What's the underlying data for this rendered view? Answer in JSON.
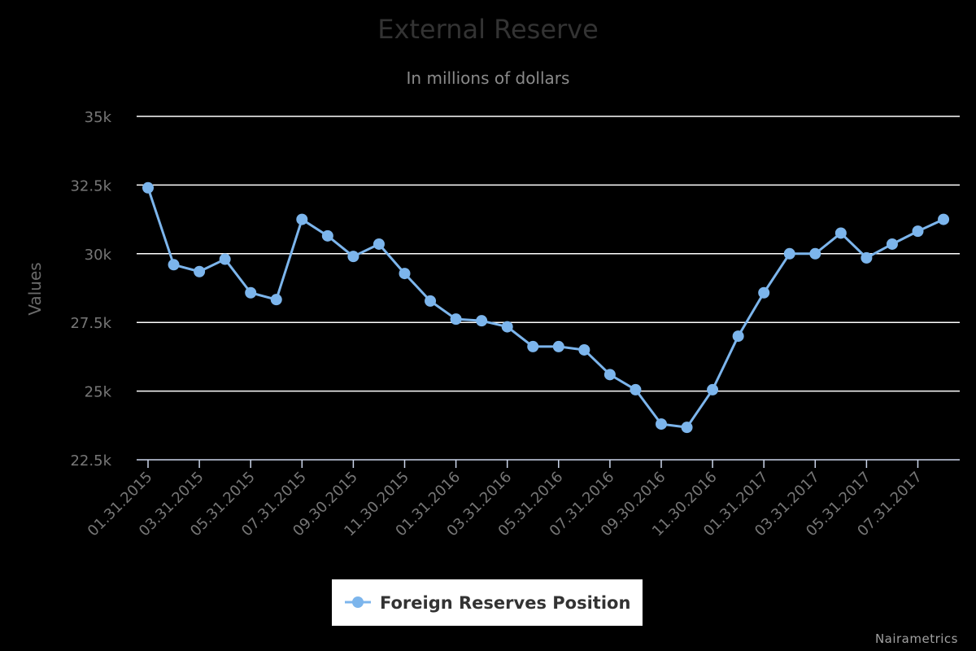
{
  "chart_data": {
    "type": "line",
    "title": "External Reserve",
    "subtitle": "In millions of dollars",
    "ylabel": "Values",
    "xlabel": "",
    "ylim": [
      22500,
      35000
    ],
    "y_ticks": [
      22500,
      25000,
      27500,
      30000,
      32500,
      35000
    ],
    "y_tick_labels": [
      "22.5k",
      "25k",
      "27.5k",
      "30k",
      "32.5k",
      "35k"
    ],
    "x_tick_labels": [
      "01.31.2015",
      "03.31.2015",
      "05.31.2015",
      "07.31.2015",
      "09.30.2015",
      "11.30.2015",
      "01.31.2016",
      "03.31.2016",
      "05.31.2016",
      "07.31.2016",
      "09.30.2016",
      "11.30.2016",
      "01.31.2017",
      "03.31.2017",
      "05.31.2017",
      "07.31.2017"
    ],
    "categories": [
      "01.31.2015",
      "02.28.2015",
      "03.31.2015",
      "04.30.2015",
      "05.31.2015",
      "06.30.2015",
      "07.31.2015",
      "08.31.2015",
      "09.30.2015",
      "10.31.2015",
      "11.30.2015",
      "12.31.2015",
      "01.31.2016",
      "02.29.2016",
      "03.31.2016",
      "04.30.2016",
      "05.31.2016",
      "06.30.2016",
      "07.31.2016",
      "08.31.2016",
      "09.30.2016",
      "10.31.2016",
      "11.30.2016",
      "12.31.2016",
      "01.31.2017",
      "02.28.2017",
      "03.31.2017",
      "04.30.2017",
      "05.31.2017",
      "06.30.2017",
      "07.31.2017",
      "08.31.2017"
    ],
    "series": [
      {
        "name": "Foreign Reserves Position",
        "color": "#7cb5ec",
        "values": [
          32400,
          29600,
          29350,
          29800,
          28580,
          28330,
          31250,
          30650,
          29900,
          30350,
          29280,
          28280,
          27620,
          27560,
          27340,
          26620,
          26620,
          26500,
          25600,
          25050,
          23800,
          23680,
          25050,
          27000,
          28580,
          30000,
          30000,
          30750,
          29850,
          30350,
          30820,
          31250
        ]
      }
    ],
    "grid": true,
    "legend": "bottom-center"
  },
  "credit": "Nairametrics",
  "colors": {
    "background": "#000000",
    "grid": "#ffffff",
    "axis": "#ccd6eb",
    "series": "#7cb5ec",
    "legend_bg": "#ffffff"
  }
}
